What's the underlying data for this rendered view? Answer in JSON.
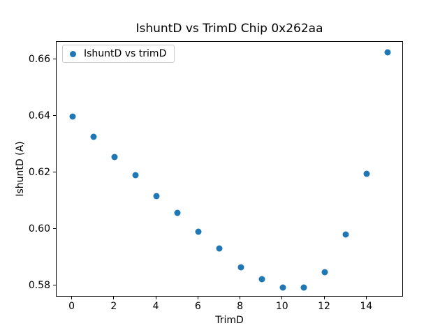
{
  "chart_data": {
    "type": "scatter",
    "title": "IshuntD vs TrimD Chip 0x262aa",
    "xlabel": "TrimD",
    "ylabel": "IshuntD (A)",
    "legend_position": "upper left",
    "grid": false,
    "series": [
      {
        "name": "IshuntD vs trimD",
        "color": "#1f77b4",
        "marker": "circle",
        "x": [
          0,
          1,
          2,
          3,
          4,
          5,
          6,
          7,
          8,
          9,
          10,
          11,
          12,
          13,
          14,
          15
        ],
        "y": [
          0.64,
          0.6328,
          0.6257,
          0.6193,
          0.6119,
          0.6058,
          0.5991,
          0.5933,
          0.5867,
          0.5824,
          0.5795,
          0.5794,
          0.5849,
          0.5983,
          0.6197,
          0.6627
        ]
      }
    ],
    "xlim": [
      -0.75,
      15.75
    ],
    "ylim": [
      0.576,
      0.6664
    ],
    "xticks": {
      "values": [
        0,
        2,
        4,
        6,
        8,
        10,
        12,
        14
      ],
      "labels": [
        "0",
        "2",
        "4",
        "6",
        "8",
        "10",
        "12",
        "14"
      ]
    },
    "yticks": {
      "values": [
        0.58,
        0.6,
        0.62,
        0.64,
        0.66
      ],
      "labels": [
        "0.58",
        "0.60",
        "0.62",
        "0.64",
        "0.66"
      ]
    },
    "axis_color": "#000000",
    "background_color": "#ffffff"
  }
}
